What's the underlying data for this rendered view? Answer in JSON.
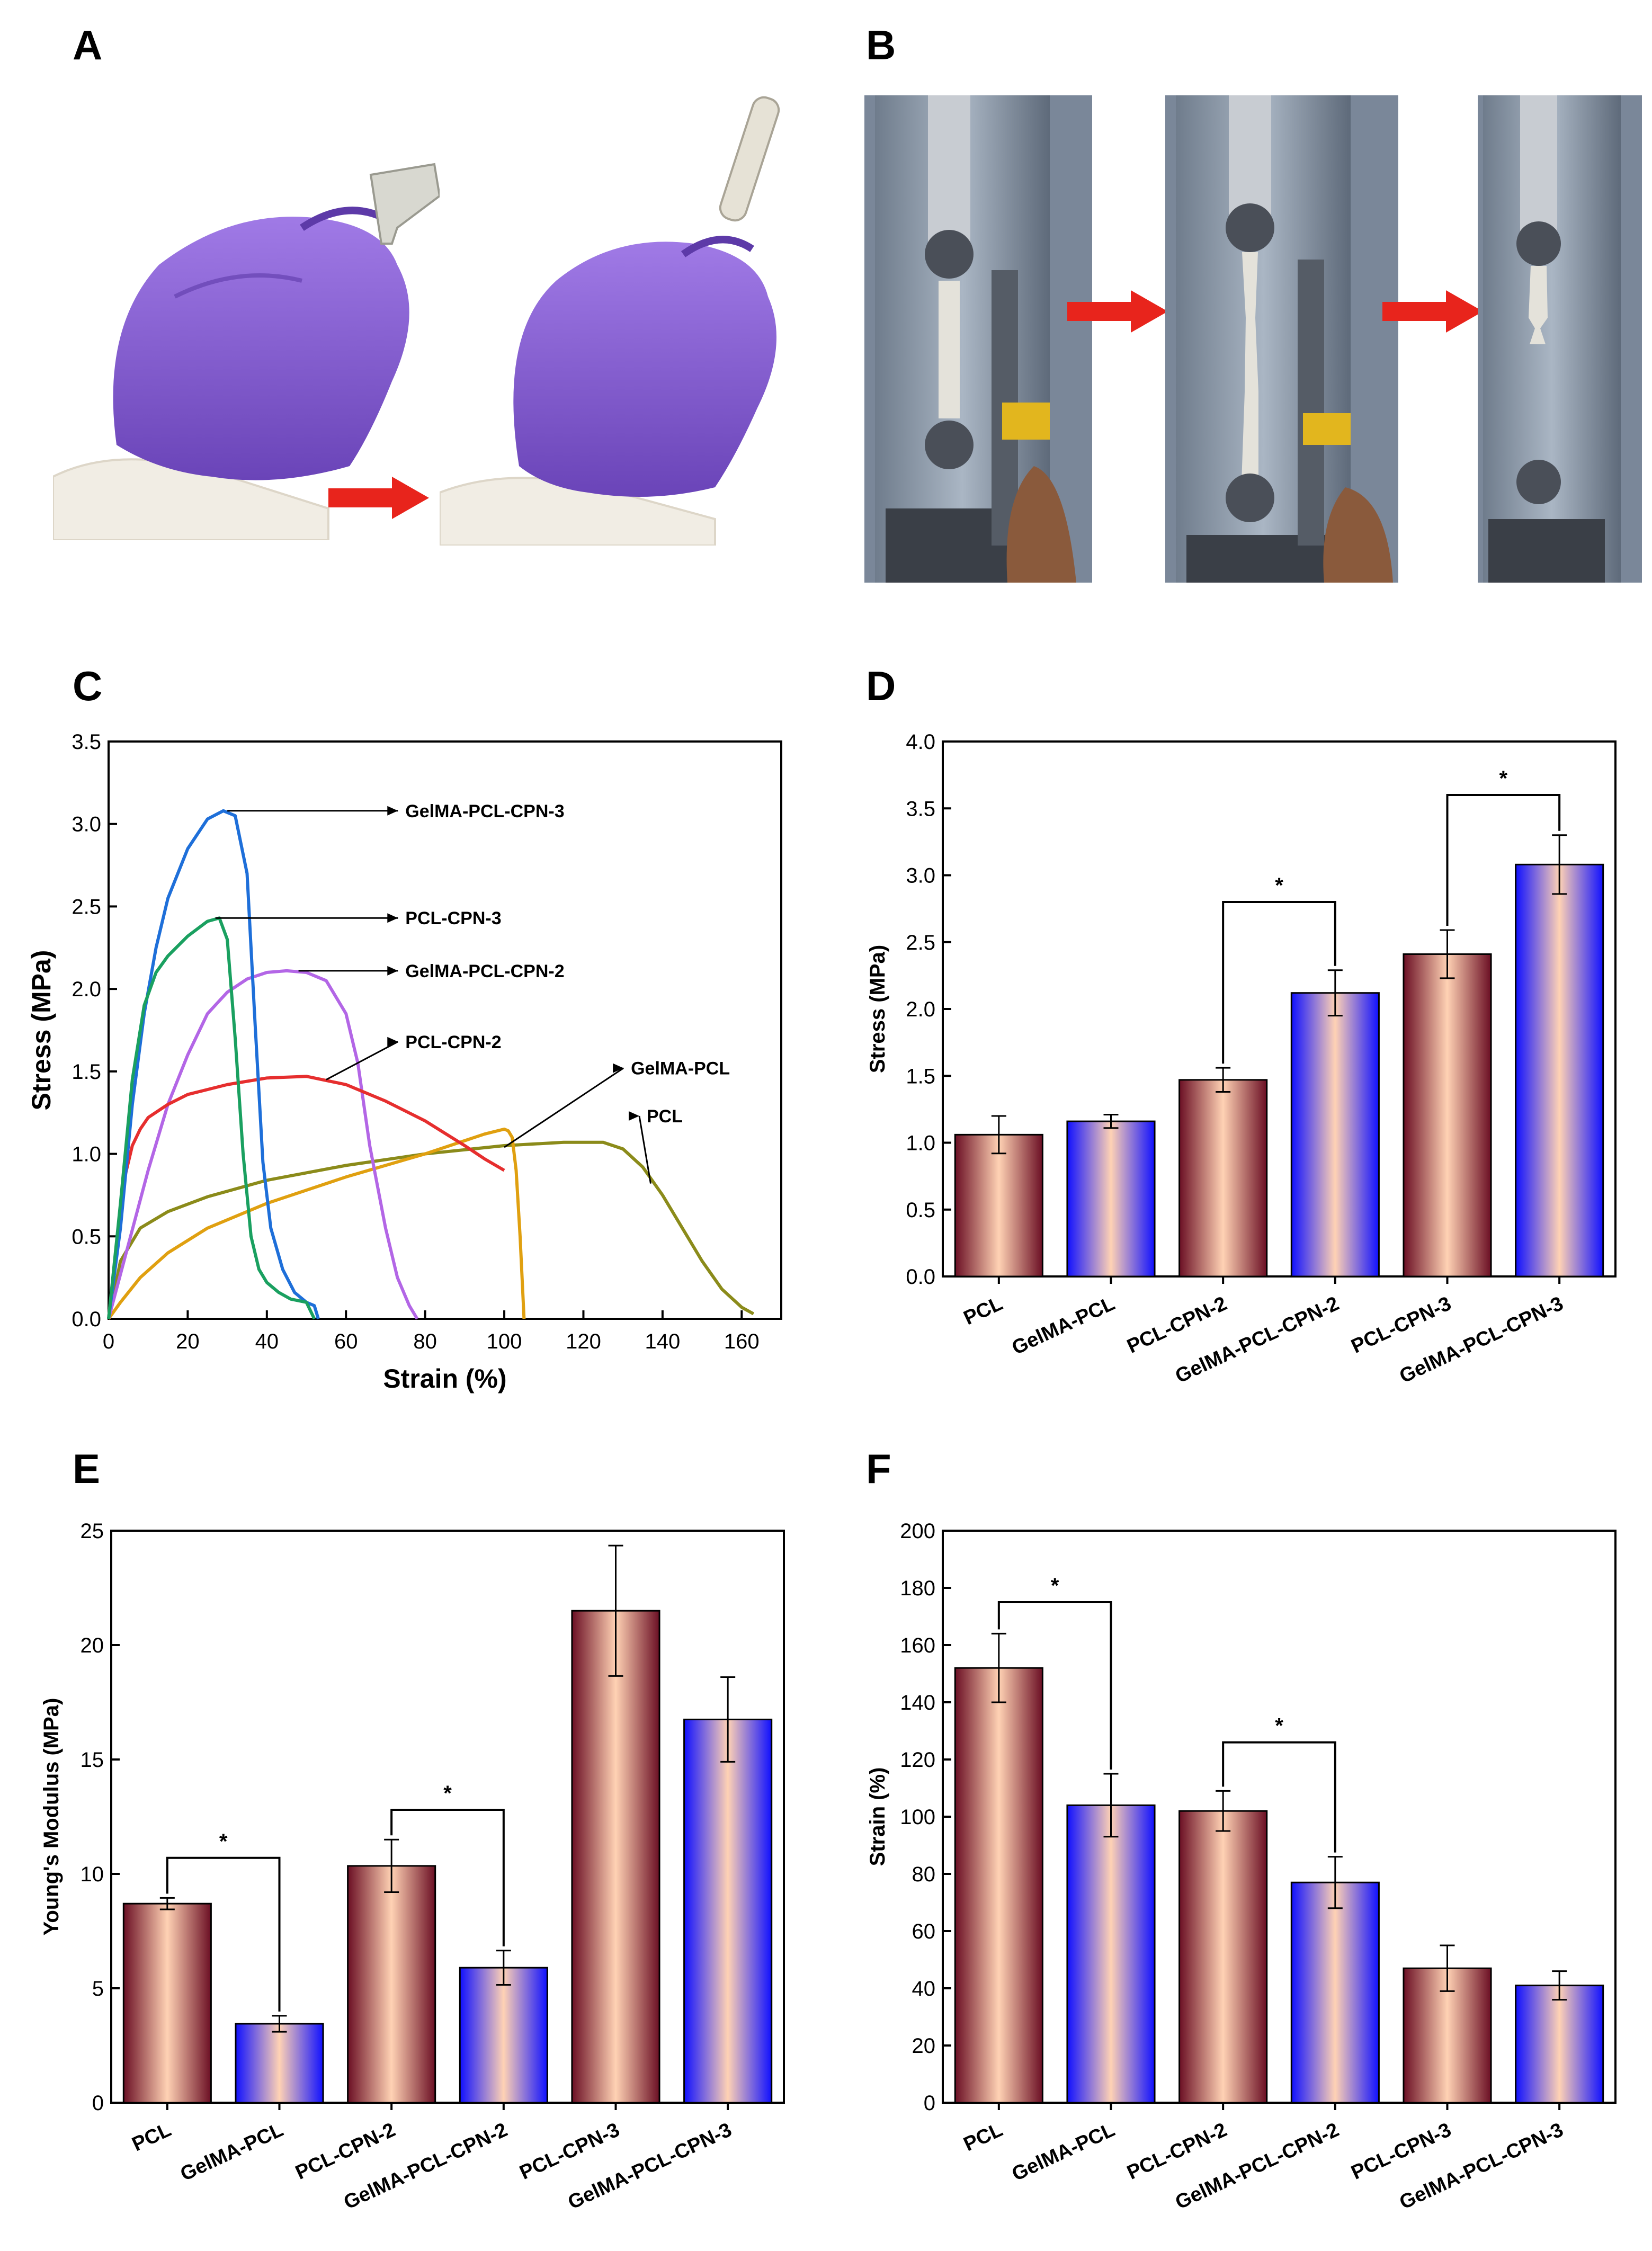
{
  "panels": {
    "a": "A",
    "b": "B",
    "c": "C",
    "d": "D",
    "e": "E",
    "f": "F"
  },
  "icons": {
    "arrow": "red-right-arrow-icon",
    "glove": "purple-glove-icon",
    "tester": "tensile-tester-icon",
    "caliper": "caliper-icon"
  },
  "colors": {
    "glove": "#8b62d6",
    "arrow": "#e8241c",
    "barMaroon": "#7a1a2e",
    "barPeach": "#ffd0b0",
    "barBlue": "#1a1aff"
  },
  "chart_data": [
    {
      "id": "C",
      "type": "line",
      "title": "",
      "xlabel": "Strain (%)",
      "ylabel": "Stress (MPa)",
      "xlim": [
        0,
        170
      ],
      "ylim": [
        0,
        3.5
      ],
      "xticks": [
        "0",
        "20",
        "40",
        "60",
        "80",
        "100",
        "120",
        "140",
        "160"
      ],
      "yticks": [
        "0.0",
        "0.5",
        "1.0",
        "1.5",
        "2.0",
        "2.5",
        "3.0",
        "3.5"
      ],
      "series": [
        {
          "name": "PCL",
          "color": "#8b8b1a",
          "x": [
            0,
            3,
            8,
            15,
            25,
            40,
            60,
            80,
            100,
            115,
            125,
            130,
            135,
            140,
            145,
            150,
            155,
            160,
            163
          ],
          "y": [
            0,
            0.35,
            0.55,
            0.65,
            0.74,
            0.84,
            0.93,
            1.0,
            1.05,
            1.07,
            1.07,
            1.03,
            0.92,
            0.75,
            0.55,
            0.35,
            0.18,
            0.07,
            0.03
          ]
        },
        {
          "name": "GelMA-PCL",
          "color": "#e0a010",
          "x": [
            0,
            3,
            8,
            15,
            25,
            40,
            60,
            80,
            95,
            100,
            101,
            102,
            103,
            104,
            105
          ],
          "y": [
            0,
            0.1,
            0.25,
            0.4,
            0.55,
            0.7,
            0.86,
            1.0,
            1.12,
            1.15,
            1.14,
            1.1,
            0.9,
            0.5,
            0.0
          ]
        },
        {
          "name": "GelMA-PCL-CPN-2",
          "color": "#b366e6",
          "x": [
            0,
            5,
            10,
            15,
            20,
            25,
            30,
            35,
            40,
            45,
            50,
            55,
            60,
            63,
            66,
            70,
            73,
            76,
            78
          ],
          "y": [
            0,
            0.45,
            0.9,
            1.3,
            1.6,
            1.85,
            1.98,
            2.06,
            2.1,
            2.11,
            2.1,
            2.05,
            1.85,
            1.55,
            1.05,
            0.55,
            0.25,
            0.08,
            0.0
          ]
        },
        {
          "name": "PCL-CPN-2",
          "color": "#e62e2e",
          "x": [
            0,
            2,
            4,
            6,
            8,
            10,
            15,
            20,
            30,
            40,
            50,
            60,
            70,
            80,
            90,
            95,
            100
          ],
          "y": [
            0,
            0.45,
            0.85,
            1.05,
            1.15,
            1.22,
            1.3,
            1.36,
            1.42,
            1.46,
            1.47,
            1.42,
            1.32,
            1.2,
            1.05,
            0.97,
            0.9
          ]
        },
        {
          "name": "GelMA-PCL-CPN-3",
          "color": "#1e6fd9",
          "x": [
            0,
            3,
            6,
            9,
            12,
            15,
            20,
            25,
            29,
            32,
            35,
            37,
            39,
            41,
            44,
            47,
            50,
            52,
            53
          ],
          "y": [
            0,
            0.55,
            1.3,
            1.85,
            2.25,
            2.55,
            2.85,
            3.03,
            3.08,
            3.05,
            2.7,
            1.8,
            0.95,
            0.55,
            0.3,
            0.16,
            0.1,
            0.08,
            0.0
          ]
        },
        {
          "name": "PCL-CPN-3",
          "color": "#1aa060",
          "x": [
            0,
            3,
            6,
            9,
            12,
            15,
            20,
            25,
            28,
            30,
            32,
            34,
            36,
            38,
            40,
            43,
            46,
            50,
            52
          ],
          "y": [
            0,
            0.7,
            1.45,
            1.9,
            2.1,
            2.2,
            2.32,
            2.41,
            2.43,
            2.3,
            1.7,
            1.0,
            0.5,
            0.3,
            0.22,
            0.16,
            0.12,
            0.1,
            0.0
          ]
        }
      ],
      "annotations": [
        {
          "text": "GelMA-PCL-CPN-3",
          "point": [
            30,
            3.08
          ],
          "label_at": [
            75,
            3.08
          ]
        },
        {
          "text": "PCL-CPN-3",
          "point": [
            27,
            2.43
          ],
          "label_at": [
            75,
            2.43
          ]
        },
        {
          "text": "GelMA-PCL-CPN-2",
          "point": [
            48,
            2.11
          ],
          "label_at": [
            75,
            2.11
          ]
        },
        {
          "text": "PCL-CPN-2",
          "point": [
            55,
            1.45
          ],
          "label_at": [
            75,
            1.68
          ]
        },
        {
          "text": "GelMA-PCL",
          "point": [
            100,
            1.04
          ],
          "label_at": [
            132,
            1.52
          ]
        },
        {
          "text": "PCL",
          "point": [
            137,
            0.82
          ],
          "label_at": [
            136,
            1.23
          ]
        }
      ]
    },
    {
      "id": "D",
      "type": "bar",
      "title": "",
      "xlabel": "",
      "ylabel": "Stress (MPa)",
      "ylim": [
        0,
        4.0
      ],
      "yticks": [
        "0.0",
        "0.5",
        "1.0",
        "1.5",
        "2.0",
        "2.5",
        "3.0",
        "3.5",
        "4.0"
      ],
      "categories": [
        "PCL",
        "GelMA-PCL",
        "PCL-CPN-2",
        "GelMA-PCL-CPN-2",
        "PCL-CPN-3",
        "GelMA-PCL-CPN-3"
      ],
      "values": [
        1.06,
        1.16,
        1.47,
        2.12,
        2.41,
        3.08
      ],
      "errors": [
        0.14,
        0.05,
        0.09,
        0.17,
        0.18,
        0.22
      ],
      "styles": [
        "maroon",
        "blue",
        "maroon",
        "blue",
        "maroon",
        "blue"
      ],
      "significance": [
        {
          "from": 2,
          "to": 3,
          "level": 2.8,
          "label": "*"
        },
        {
          "from": 4,
          "to": 5,
          "level": 3.6,
          "label": "*"
        }
      ]
    },
    {
      "id": "E",
      "type": "bar",
      "title": "",
      "xlabel": "",
      "ylabel": "Young's Modulus (MPa)",
      "ylim": [
        0,
        25
      ],
      "yticks": [
        "0",
        "5",
        "10",
        "15",
        "20",
        "25"
      ],
      "categories": [
        "PCL",
        "GelMA-PCL",
        "PCL-CPN-2",
        "GelMA-PCL-CPN-2",
        "PCL-CPN-3",
        "GelMA-PCL-CPN-3"
      ],
      "values": [
        8.7,
        3.45,
        10.35,
        5.9,
        21.5,
        16.75
      ],
      "errors": [
        0.25,
        0.35,
        1.15,
        0.75,
        2.85,
        1.85
      ],
      "styles": [
        "maroon",
        "blue",
        "maroon",
        "blue",
        "maroon",
        "blue"
      ],
      "significance": [
        {
          "from": 0,
          "to": 1,
          "level": 10.7,
          "label": "*"
        },
        {
          "from": 2,
          "to": 3,
          "level": 12.8,
          "label": "*"
        }
      ]
    },
    {
      "id": "F",
      "type": "bar",
      "title": "",
      "xlabel": "",
      "ylabel": "Strain (%)",
      "ylim": [
        0,
        200
      ],
      "yticks": [
        "0",
        "20",
        "40",
        "60",
        "80",
        "100",
        "120",
        "140",
        "160",
        "180",
        "200"
      ],
      "categories": [
        "PCL",
        "GelMA-PCL",
        "PCL-CPN-2",
        "GelMA-PCL-CPN-2",
        "PCL-CPN-3",
        "GelMA-PCL-CPN-3"
      ],
      "values": [
        152,
        104,
        102,
        77,
        47,
        41
      ],
      "errors": [
        12,
        11,
        7,
        9,
        8,
        5
      ],
      "styles": [
        "maroon",
        "blue",
        "maroon",
        "blue",
        "maroon",
        "blue"
      ],
      "significance": [
        {
          "from": 0,
          "to": 1,
          "level": 175,
          "label": "*"
        },
        {
          "from": 2,
          "to": 3,
          "level": 126,
          "label": "*"
        }
      ]
    }
  ]
}
